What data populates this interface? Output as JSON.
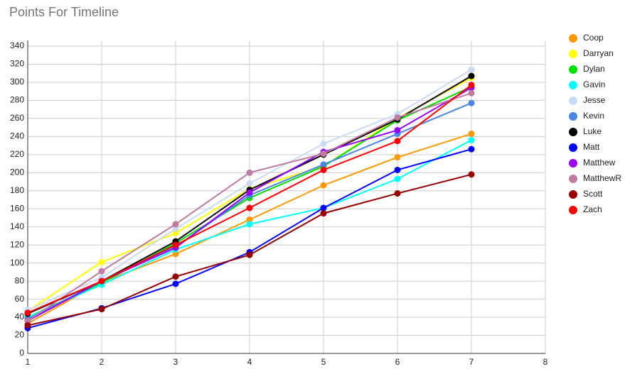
{
  "chart_data": {
    "type": "line",
    "title": "Points For Timeline",
    "x": [
      1,
      2,
      3,
      4,
      5,
      6,
      7
    ],
    "xlim": [
      1,
      8
    ],
    "xticks": [
      1,
      2,
      3,
      4,
      5,
      6,
      7,
      8
    ],
    "ylim": [
      0,
      340
    ],
    "yticks": [
      0,
      20,
      40,
      60,
      80,
      100,
      120,
      140,
      160,
      180,
      200,
      220,
      240,
      260,
      280,
      300,
      320,
      340
    ],
    "grid": true,
    "legend": "right",
    "series": [
      {
        "name": "Coop",
        "color": "#ff9900",
        "values": [
          33,
          79,
          110,
          148,
          186,
          217,
          243
        ]
      },
      {
        "name": "Darryan",
        "color": "#ffff00",
        "values": [
          47,
          101,
          133,
          182,
          207,
          260,
          305
        ]
      },
      {
        "name": "Dylan",
        "color": "#00e000",
        "values": [
          40,
          78,
          122,
          172,
          207,
          258,
          295
        ]
      },
      {
        "name": "Gavin",
        "color": "#00ffff",
        "values": [
          40,
          76,
          115,
          143,
          161,
          193,
          236
        ]
      },
      {
        "name": "Jesse",
        "color": "#c9daf8",
        "values": [
          48,
          84,
          138,
          188,
          232,
          265,
          314
        ]
      },
      {
        "name": "Kevin",
        "color": "#4a86e8",
        "values": [
          38,
          80,
          118,
          175,
          209,
          243,
          277
        ]
      },
      {
        "name": "Luke",
        "color": "#000000",
        "values": [
          44,
          80,
          124,
          181,
          220,
          259,
          307
        ]
      },
      {
        "name": "Matt",
        "color": "#0000ff",
        "values": [
          28,
          50,
          77,
          112,
          161,
          203,
          226
        ]
      },
      {
        "name": "Matthew",
        "color": "#9900ff",
        "values": [
          36,
          80,
          117,
          178,
          223,
          247,
          294
        ]
      },
      {
        "name": "MatthewR",
        "color": "#c27ba0",
        "values": [
          36,
          91,
          143,
          200,
          221,
          261,
          288
        ]
      },
      {
        "name": "Scott",
        "color": "#980000",
        "values": [
          31,
          49,
          85,
          109,
          155,
          177,
          198
        ]
      },
      {
        "name": "Zach",
        "color": "#ff0000",
        "values": [
          45,
          80,
          120,
          161,
          203,
          235,
          297
        ]
      }
    ]
  }
}
